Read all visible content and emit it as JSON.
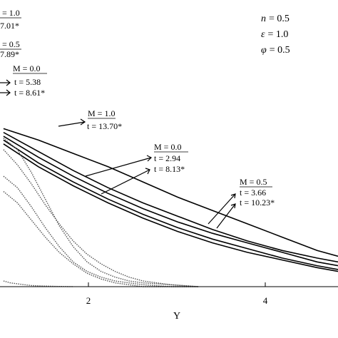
{
  "chart_data": {
    "type": "line",
    "xlabel": "Y",
    "xlim": [
      -0.05,
      4.8
    ],
    "ylim": [
      0,
      1
    ],
    "x_ticks": [
      "2",
      "4"
    ],
    "x_tick_values": [
      2,
      4
    ],
    "grid": false,
    "params": [
      {
        "symbol": "n",
        "value": "= 0.5"
      },
      {
        "symbol": "ε",
        "value": "= 1.0"
      },
      {
        "symbol": "φ",
        "value": "= 0.5"
      }
    ],
    "solid_series": [
      {
        "x": [
          0,
          0.5,
          1,
          1.5,
          2,
          2.5,
          3,
          3.5,
          4,
          4.5,
          4.8
        ],
        "y": [
          0.83,
          0.77,
          0.7,
          0.63,
          0.55,
          0.47,
          0.4,
          0.33,
          0.26,
          0.19,
          0.16
        ]
      },
      {
        "x": [
          0,
          0.5,
          1,
          1.5,
          2,
          2.5,
          3,
          3.5,
          4,
          4.5,
          4.8
        ],
        "y": [
          0.81,
          0.71,
          0.61,
          0.52,
          0.44,
          0.37,
          0.3,
          0.24,
          0.19,
          0.15,
          0.13
        ]
      },
      {
        "x": [
          0,
          0.5,
          1,
          1.5,
          2,
          2.5,
          3,
          3.5,
          4,
          4.5,
          4.8
        ],
        "y": [
          0.79,
          0.68,
          0.58,
          0.49,
          0.41,
          0.34,
          0.28,
          0.23,
          0.18,
          0.13,
          0.11
        ]
      },
      {
        "x": [
          0,
          0.5,
          1,
          1.5,
          2,
          2.5,
          3,
          3.5,
          4,
          4.5,
          4.8
        ],
        "y": [
          0.77,
          0.65,
          0.55,
          0.46,
          0.38,
          0.31,
          0.25,
          0.2,
          0.15,
          0.11,
          0.09
        ]
      },
      {
        "x": [
          0,
          0.5,
          1,
          1.5,
          2,
          2.5,
          3,
          3.5,
          4,
          4.5,
          4.8
        ],
        "y": [
          0.75,
          0.63,
          0.53,
          0.44,
          0.36,
          0.29,
          0.23,
          0.18,
          0.14,
          0.1,
          0.08
        ]
      }
    ],
    "dotted_series": [
      {
        "x": [
          0,
          0.2,
          0.4,
          0.6,
          0.8,
          1.0,
          1.2,
          1.4,
          1.6,
          1.8,
          2.0,
          2.4,
          2.8
        ],
        "y": [
          0.78,
          0.72,
          0.6,
          0.46,
          0.32,
          0.21,
          0.13,
          0.08,
          0.05,
          0.03,
          0.02,
          0.01,
          0.0
        ]
      },
      {
        "x": [
          0,
          0.2,
          0.4,
          0.6,
          0.8,
          1.0,
          1.2,
          1.4,
          1.6,
          1.8,
          2.0,
          2.4,
          2.8
        ],
        "y": [
          0.72,
          0.64,
          0.54,
          0.43,
          0.33,
          0.24,
          0.17,
          0.12,
          0.08,
          0.05,
          0.03,
          0.01,
          0.0
        ]
      },
      {
        "x": [
          0,
          0.2,
          0.4,
          0.6,
          0.8,
          1.0,
          1.2,
          1.4,
          1.6,
          1.8,
          2.0,
          2.4,
          2.8
        ],
        "y": [
          0.58,
          0.52,
          0.42,
          0.31,
          0.21,
          0.13,
          0.08,
          0.05,
          0.03,
          0.02,
          0.01,
          0.0,
          0.0
        ]
      },
      {
        "x": [
          0,
          0.2,
          0.4,
          0.6,
          0.8,
          1.0,
          1.2,
          1.4,
          1.6,
          1.8,
          2.0,
          2.4,
          2.8
        ],
        "y": [
          0.5,
          0.44,
          0.35,
          0.26,
          0.18,
          0.12,
          0.07,
          0.04,
          0.02,
          0.01,
          0.0,
          0.0,
          0.0
        ]
      },
      {
        "x": [
          0,
          0.1,
          0.2,
          0.3,
          0.4,
          0.6,
          0.8,
          1.0
        ],
        "y": [
          0.03,
          0.02,
          0.015,
          0.01,
          0.006,
          0.003,
          0.001,
          0.0
        ]
      }
    ],
    "annotations": [
      {
        "m": "= 1.0",
        "t": "7.01*"
      },
      {
        "m": "= 0.5",
        "t": "7.89*"
      },
      {
        "m": "M = 0.0",
        "t": "t = 5.38",
        "t2": "t = 8.61*"
      },
      {
        "m": "M = 1.0",
        "t": "t = 13.70*"
      },
      {
        "m": "M = 0.0",
        "t": "t = 2.94",
        "t2": "t = 8.13*"
      },
      {
        "m": "M = 0.5",
        "t": "t = 3.66",
        "t2": "t = 10.23*"
      }
    ]
  }
}
